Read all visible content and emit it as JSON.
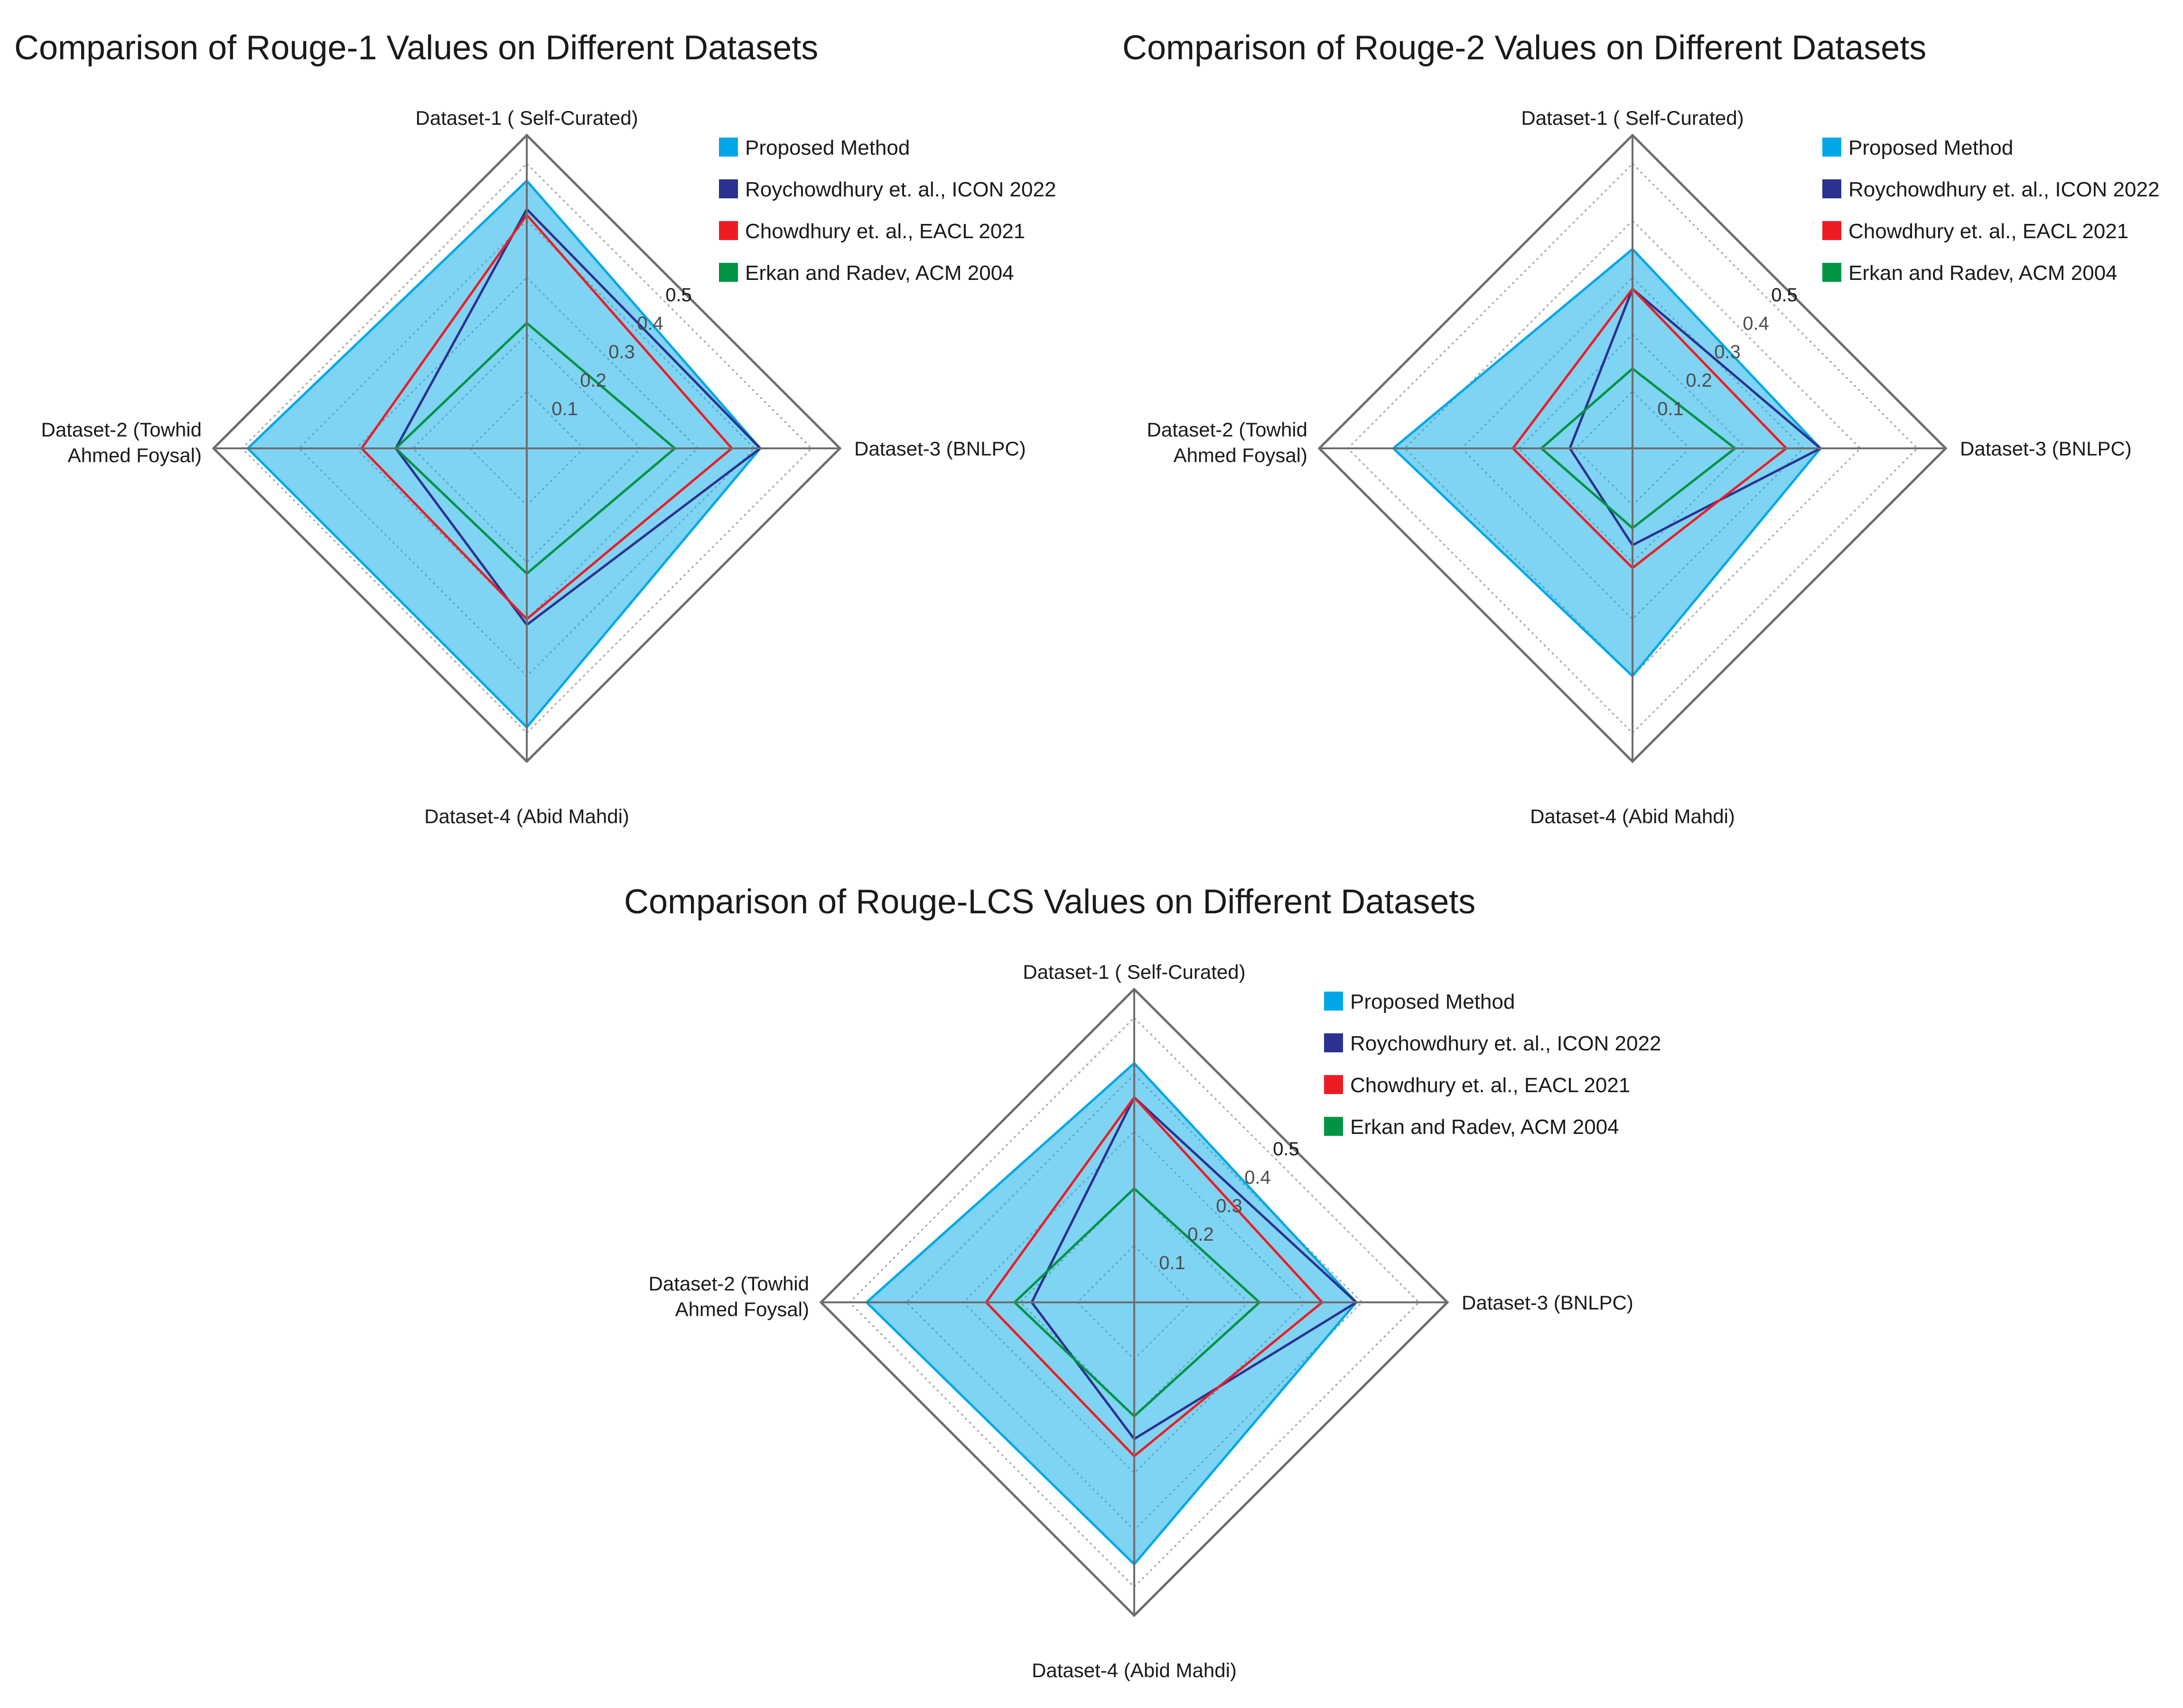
{
  "chart_data": [
    {
      "type": "radar",
      "title": "Comparison of Rouge-1 Values on Different Datasets",
      "axes": [
        "Dataset-1 ( Self-Curated)",
        "Dataset-2 (Towhid Ahmed Foysal)",
        "Dataset-3 (BNLPC)",
        "Dataset-4 (Abid Mahdi)"
      ],
      "axes_order_clockwise_from_top": [
        "Dataset-1 ( Self-Curated)",
        "Dataset-3 (BNLPC)",
        "Dataset-4 (Abid Mahdi)",
        "Dataset-2 (Towhid Ahmed Foysal)"
      ],
      "rmax": 0.55,
      "ticks": [
        0.1,
        0.2,
        0.3,
        0.4,
        0.5
      ],
      "tick_labels": [
        "0.1",
        "0.2",
        "0.3",
        "0.4",
        "0.5"
      ],
      "legend_position": "top-right",
      "series": [
        {
          "name": "Proposed Method",
          "color": "#00a8e8",
          "filled": true,
          "values": [
            0.47,
            0.49,
            0.41,
            0.49
          ]
        },
        {
          "name": "Roychowdhury et. al., ICON 2022",
          "color": "#2b3190",
          "filled": false,
          "values": [
            0.42,
            0.23,
            0.41,
            0.31
          ]
        },
        {
          "name": "Chowdhury et. al., EACL 2021",
          "color": "#ed1c24",
          "filled": false,
          "values": [
            0.41,
            0.29,
            0.36,
            0.3
          ]
        },
        {
          "name": "Erkan and Radev, ACM 2004",
          "color": "#009444",
          "filled": false,
          "values": [
            0.22,
            0.23,
            0.26,
            0.22
          ]
        }
      ]
    },
    {
      "type": "radar",
      "title": "Comparison of Rouge-2 Values on Different Datasets",
      "axes": [
        "Dataset-1 ( Self-Curated)",
        "Dataset-2 (Towhid Ahmed Foysal)",
        "Dataset-3 (BNLPC)",
        "Dataset-4 (Abid Mahdi)"
      ],
      "axes_order_clockwise_from_top": [
        "Dataset-1 ( Self-Curated)",
        "Dataset-3 (BNLPC)",
        "Dataset-4 (Abid Mahdi)",
        "Dataset-2 (Towhid Ahmed Foysal)"
      ],
      "rmax": 0.55,
      "ticks": [
        0.1,
        0.2,
        0.3,
        0.4,
        0.5
      ],
      "tick_labels": [
        "0.1",
        "0.2",
        "0.3",
        "0.4",
        "0.5"
      ],
      "legend_position": "top-right",
      "series": [
        {
          "name": "Proposed Method",
          "color": "#00a8e8",
          "filled": true,
          "values": [
            0.35,
            0.42,
            0.33,
            0.4
          ]
        },
        {
          "name": "Roychowdhury et. al., ICON 2022",
          "color": "#2b3190",
          "filled": false,
          "values": [
            0.28,
            0.11,
            0.33,
            0.17
          ]
        },
        {
          "name": "Chowdhury et. al., EACL 2021",
          "color": "#ed1c24",
          "filled": false,
          "values": [
            0.28,
            0.21,
            0.27,
            0.21
          ]
        },
        {
          "name": "Erkan and Radev, ACM 2004",
          "color": "#009444",
          "filled": false,
          "values": [
            0.14,
            0.16,
            0.18,
            0.14
          ]
        }
      ]
    },
    {
      "type": "radar",
      "title": "Comparison of Rouge-LCS Values on Different Datasets",
      "axes": [
        "Dataset-1 ( Self-Curated)",
        "Dataset-2 (Towhid Ahmed Foysal)",
        "Dataset-3 (BNLPC)",
        "Dataset-4 (Abid Mahdi)"
      ],
      "axes_order_clockwise_from_top": [
        "Dataset-1 ( Self-Curated)",
        "Dataset-3 (BNLPC)",
        "Dataset-4 (Abid Mahdi)",
        "Dataset-2 (Towhid Ahmed Foysal)"
      ],
      "rmax": 0.55,
      "ticks": [
        0.1,
        0.2,
        0.3,
        0.4,
        0.5
      ],
      "tick_labels": [
        "0.1",
        "0.2",
        "0.3",
        "0.4",
        "0.5"
      ],
      "legend_position": "top-right",
      "series": [
        {
          "name": "Proposed Method",
          "color": "#00a8e8",
          "filled": true,
          "values": [
            0.42,
            0.47,
            0.39,
            0.46
          ]
        },
        {
          "name": "Roychowdhury et. al., ICON 2022",
          "color": "#2b3190",
          "filled": false,
          "values": [
            0.36,
            0.18,
            0.39,
            0.24
          ]
        },
        {
          "name": "Chowdhury et. al., EACL 2021",
          "color": "#ed1c24",
          "filled": false,
          "values": [
            0.36,
            0.26,
            0.33,
            0.27
          ]
        },
        {
          "name": "Erkan and Radev, ACM 2004",
          "color": "#009444",
          "filled": false,
          "values": [
            0.2,
            0.21,
            0.22,
            0.2
          ]
        }
      ]
    }
  ]
}
